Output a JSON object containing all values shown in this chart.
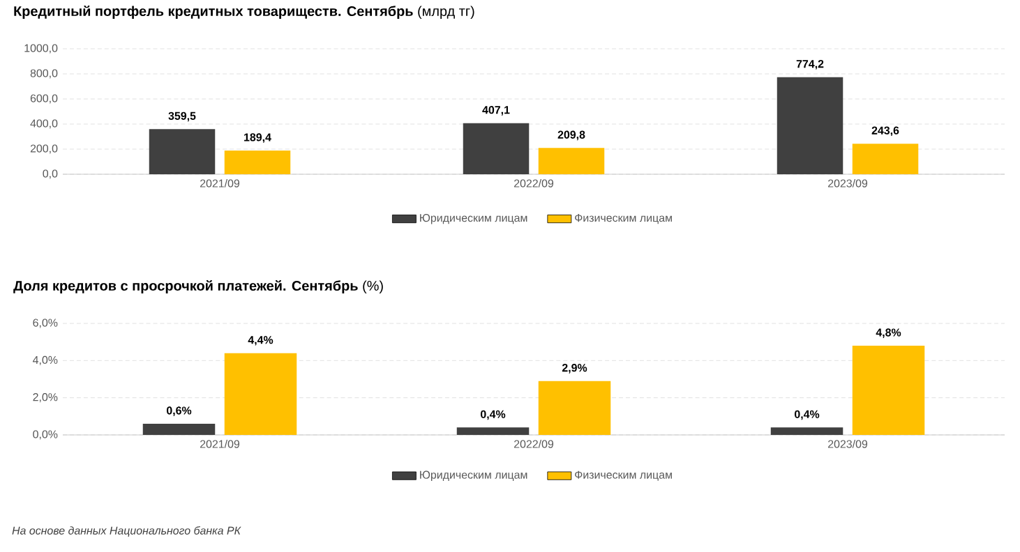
{
  "chart_data": [
    {
      "type": "bar",
      "title": "**Кредитный портфель кредитных товариществ. Сентябрь** (млрд тг)",
      "categories": [
        "2021/09",
        "2022/09",
        "2023/09"
      ],
      "series": [
        {
          "name": "Юридическим лицам",
          "color": "#404040",
          "values": [
            359.5,
            407.1,
            774.2
          ],
          "value_labels": [
            "359,5",
            "407,1",
            "774,2"
          ]
        },
        {
          "name": "Физическим лицам",
          "color": "#ffc000",
          "values": [
            189.4,
            209.8,
            243.6
          ],
          "value_labels": [
            "189,4",
            "209,8",
            "243,6"
          ]
        }
      ],
      "ylim": [
        0,
        1000
      ],
      "yticks": [
        {
          "value": 0,
          "label": "0,0"
        },
        {
          "value": 200,
          "label": "200,0"
        },
        {
          "value": 400,
          "label": "400,0"
        },
        {
          "value": 600,
          "label": "600,0"
        },
        {
          "value": 800,
          "label": "800,0"
        },
        {
          "value": 1000,
          "label": "1000,0"
        }
      ],
      "grid": "y",
      "legend": "bottom"
    },
    {
      "type": "bar",
      "title": "**Доля кредитов с просрочкой платежей. Сентябрь** (%)",
      "categories": [
        "2021/09",
        "2022/09",
        "2023/09"
      ],
      "series": [
        {
          "name": "Юридическим лицам",
          "color": "#404040",
          "values": [
            0.6,
            0.4,
            0.4
          ],
          "value_labels": [
            "0,6%",
            "0,4%",
            "0,4%"
          ]
        },
        {
          "name": "Физическим лицам",
          "color": "#ffc000",
          "values": [
            4.4,
            2.9,
            4.8
          ],
          "value_labels": [
            "4,4%",
            "2,9%",
            "4,8%"
          ]
        }
      ],
      "ylim": [
        0,
        6
      ],
      "yticks": [
        {
          "value": 0,
          "label": "0,0%"
        },
        {
          "value": 2,
          "label": "2,0%"
        },
        {
          "value": 4,
          "label": "4,0%"
        },
        {
          "value": 6,
          "label": "6,0%"
        }
      ],
      "grid": "y",
      "legend": "bottom",
      "annotations": [
        "На основе данных Национального банка РК"
      ]
    }
  ]
}
